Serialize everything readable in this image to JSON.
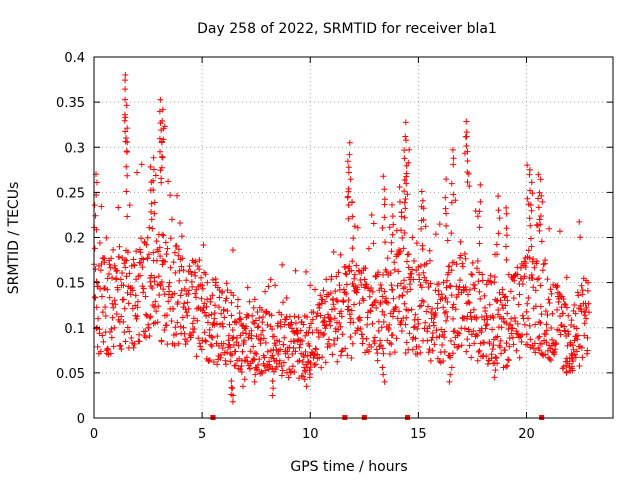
{
  "chart_data": {
    "type": "scatter",
    "title": "Day 258 of 2022, SRMTID for receiver bla1",
    "xlabel": "GPS time / hours",
    "ylabel": "SRMTID / TECUs",
    "xlim": [
      0,
      24
    ],
    "ylim": [
      0,
      0.4
    ],
    "xticks": [
      0,
      5,
      10,
      15,
      20
    ],
    "xtick_labels": [
      "0",
      "5",
      "10",
      "15",
      "20"
    ],
    "yticks": [
      0,
      0.05,
      0.1,
      0.15,
      0.2,
      0.25,
      0.3,
      0.35,
      0.4
    ],
    "ytick_labels": [
      "0",
      "0.05",
      "0.1",
      "0.15",
      "0.2",
      "0.25",
      "0.3",
      "0.35",
      "0.4"
    ],
    "grid": true,
    "marker": "+",
    "color": "#ff0000",
    "series": [
      {
        "name": "bla1",
        "time_range_hours": [
          0,
          22.9
        ],
        "baseline_envelope": [
          {
            "x": 0,
            "y": 0.12
          },
          {
            "x": 1,
            "y": 0.13
          },
          {
            "x": 2,
            "y": 0.14
          },
          {
            "x": 3,
            "y": 0.15
          },
          {
            "x": 4,
            "y": 0.13
          },
          {
            "x": 5,
            "y": 0.12
          },
          {
            "x": 6,
            "y": 0.1
          },
          {
            "x": 7,
            "y": 0.09
          },
          {
            "x": 8,
            "y": 0.085
          },
          {
            "x": 9,
            "y": 0.08
          },
          {
            "x": 10,
            "y": 0.08
          },
          {
            "x": 11,
            "y": 0.11
          },
          {
            "x": 12,
            "y": 0.12
          },
          {
            "x": 13,
            "y": 0.11
          },
          {
            "x": 14,
            "y": 0.13
          },
          {
            "x": 15,
            "y": 0.12
          },
          {
            "x": 16,
            "y": 0.11
          },
          {
            "x": 17,
            "y": 0.13
          },
          {
            "x": 18,
            "y": 0.11
          },
          {
            "x": 19,
            "y": 0.1
          },
          {
            "x": 20,
            "y": 0.13
          },
          {
            "x": 21,
            "y": 0.12
          },
          {
            "x": 22,
            "y": 0.08
          },
          {
            "x": 22.9,
            "y": 0.12
          }
        ],
        "peaks": [
          {
            "x": 1.4,
            "y": 0.39
          },
          {
            "x": 1.5,
            "y": 0.355
          },
          {
            "x": 1.5,
            "y": 0.32
          },
          {
            "x": 3.1,
            "y": 0.36
          },
          {
            "x": 3.2,
            "y": 0.345
          },
          {
            "x": 3.1,
            "y": 0.33
          },
          {
            "x": 2.8,
            "y": 0.29
          },
          {
            "x": 2.6,
            "y": 0.28
          },
          {
            "x": 0.1,
            "y": 0.275
          },
          {
            "x": 11.8,
            "y": 0.305
          },
          {
            "x": 11.8,
            "y": 0.285
          },
          {
            "x": 12.0,
            "y": 0.24
          },
          {
            "x": 14.4,
            "y": 0.33
          },
          {
            "x": 14.5,
            "y": 0.31
          },
          {
            "x": 13.4,
            "y": 0.275
          },
          {
            "x": 14.4,
            "y": 0.27
          },
          {
            "x": 14.2,
            "y": 0.26
          },
          {
            "x": 13.8,
            "y": 0.245
          },
          {
            "x": 15.2,
            "y": 0.26
          },
          {
            "x": 16.3,
            "y": 0.265
          },
          {
            "x": 16.6,
            "y": 0.305
          },
          {
            "x": 17.2,
            "y": 0.33
          },
          {
            "x": 17.3,
            "y": 0.325
          },
          {
            "x": 17.8,
            "y": 0.26
          },
          {
            "x": 20.1,
            "y": 0.285
          },
          {
            "x": 20.2,
            "y": 0.28
          },
          {
            "x": 20.6,
            "y": 0.27
          },
          {
            "x": 20.7,
            "y": 0.265
          },
          {
            "x": 18.7,
            "y": 0.25
          },
          {
            "x": 19.1,
            "y": 0.24
          }
        ],
        "troughs": [
          {
            "x": 6.4,
            "y": 0.018
          },
          {
            "x": 6.4,
            "y": 0.025
          },
          {
            "x": 8.3,
            "y": 0.025
          },
          {
            "x": 6.9,
            "y": 0.035
          },
          {
            "x": 9.8,
            "y": 0.035
          },
          {
            "x": 10.0,
            "y": 0.045
          },
          {
            "x": 16.5,
            "y": 0.04
          },
          {
            "x": 18.5,
            "y": 0.045
          },
          {
            "x": 21.9,
            "y": 0.05
          },
          {
            "x": 22.1,
            "y": 0.055
          },
          {
            "x": 13.4,
            "y": 0.04
          },
          {
            "x": 7.5,
            "y": 0.04
          }
        ]
      }
    ],
    "gap_markers_x": [
      5.5,
      11.6,
      12.5,
      14.5,
      20.7
    ]
  }
}
